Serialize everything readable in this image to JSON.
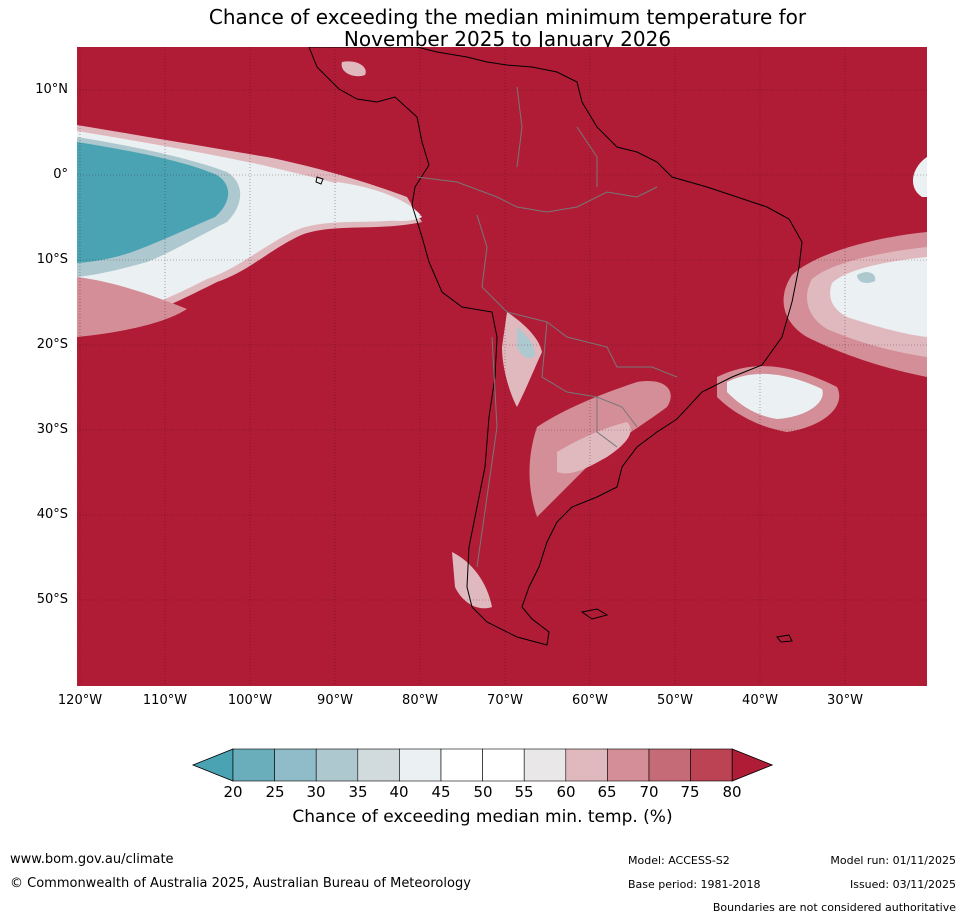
{
  "title_line1": "Chance of exceeding the median minimum temperature for",
  "title_line2": "November 2025 to January 2026",
  "lat_labels": [
    "10°N",
    "0°",
    "10°S",
    "20°S",
    "30°S",
    "40°S",
    "50°S"
  ],
  "lon_labels": [
    "120°W",
    "110°W",
    "100°W",
    "90°W",
    "80°W",
    "70°W",
    "60°W",
    "50°W",
    "40°W",
    "30°W"
  ],
  "colorbar": {
    "ticks": [
      "20",
      "25",
      "30",
      "35",
      "40",
      "45",
      "50",
      "55",
      "60",
      "65",
      "70",
      "75",
      "80"
    ],
    "colors": [
      "#4aa3b3",
      "#6aadbb",
      "#8fbcc8",
      "#aec8cf",
      "#d1dadd",
      "#ebf0f2",
      "#ffffff",
      "#ffffff",
      "#e9e7e8",
      "#e0b9bf",
      "#d48e98",
      "#c56b77",
      "#bb4353",
      "#b01c36"
    ],
    "label": "Chance of exceeding median min. temp. (%)"
  },
  "colors": {
    "high": "#b01c36",
    "low": "#4aa3b3"
  },
  "footer": {
    "website": "www.bom.gov.au/climate",
    "copyright": "© Commonwealth of Australia 2025, Australian Bureau of Meteorology",
    "model": "Model: ACCESS-S2",
    "base_period": "Base period: 1981-2018",
    "model_run": "Model run: 01/11/2025",
    "issued": "Issued: 03/11/2025",
    "disclaimer": "Boundaries are not considered authoritative"
  }
}
